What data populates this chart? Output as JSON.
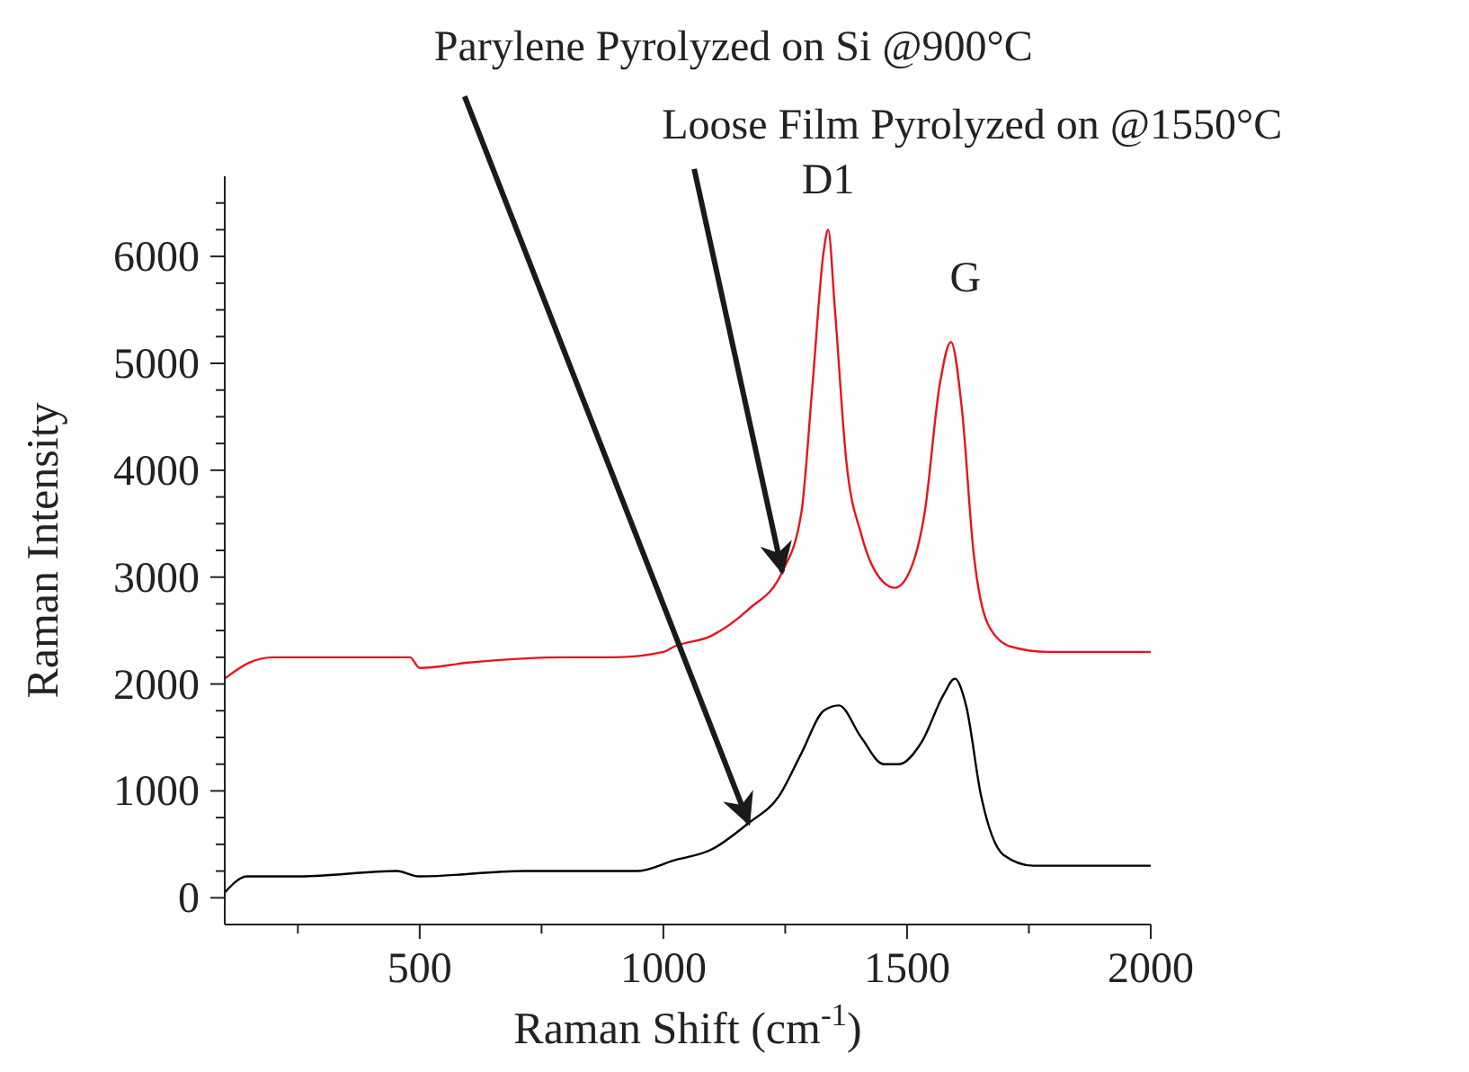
{
  "chart_data": {
    "type": "line",
    "xlabel": "Raman Shift (cm$^{-1}$)",
    "ylabel": "Raman Intensity",
    "xlim": [
      100,
      2000
    ],
    "ylim": [
      -250,
      6750
    ],
    "xticks": [
      {
        "value": 250,
        "label": null
      },
      500,
      {
        "value": 750,
        "label": null
      },
      1000,
      {
        "value": 1250,
        "label": null
      },
      1500,
      {
        "value": 1750,
        "label": null
      },
      2000
    ],
    "yticks": [
      0,
      {
        "value": 250,
        "label": null
      },
      {
        "value": 500,
        "label": null
      },
      {
        "value": 750,
        "label": null
      },
      1000,
      {
        "value": 1250,
        "label": null
      },
      {
        "value": 1500,
        "label": null
      },
      {
        "value": 1750,
        "label": null
      },
      2000,
      {
        "value": 2250,
        "label": null
      },
      {
        "value": 2500,
        "label": null
      },
      {
        "value": 2750,
        "label": null
      },
      3000,
      {
        "value": 3250,
        "label": null
      },
      {
        "value": 3500,
        "label": null
      },
      {
        "value": 3750,
        "label": null
      },
      4000,
      {
        "value": 4250,
        "label": null
      },
      {
        "value": 4500,
        "label": null
      },
      {
        "value": 4750,
        "label": null
      },
      5000,
      {
        "value": 5250,
        "label": null
      },
      {
        "value": 5500,
        "label": null
      },
      {
        "value": 5750,
        "label": null
      },
      6000,
      {
        "value": 6250,
        "label": null
      },
      {
        "value": 6500,
        "label": null
      }
    ],
    "marker": "none",
    "line_style": "solid",
    "series": [
      {
        "color": "#e8141c",
        "x": [
          100,
          150,
          200,
          300,
          450,
          480,
          500,
          600,
          800,
          870,
          900,
          1000,
          1022,
          1098,
          1175,
          1244,
          1283,
          1306,
          1329,
          1338,
          1352,
          1375,
          1406,
          1452,
          1475,
          1505,
          1536,
          1567,
          1590,
          1613,
          1636,
          1667,
          1713,
          1790,
          2000
        ],
        "values": [
          2050,
          2200,
          2250,
          2250,
          2250,
          2250,
          2150,
          2200,
          2250,
          2250,
          2250,
          2300,
          2350,
          2450,
          2700,
          3050,
          3600,
          4800,
          6050,
          6250,
          5500,
          4100,
          3400,
          2950,
          2900,
          3050,
          3600,
          4800,
          5200,
          4550,
          3250,
          2550,
          2350,
          2300,
          2300
        ]
      },
      {
        "color": "#000000",
        "x": [
          100,
          146,
          254,
          453,
          499,
          714,
          945,
          1022,
          1098,
          1175,
          1237,
          1283,
          1329,
          1360,
          1406,
          1452,
          1483,
          1529,
          1575,
          1598,
          1621,
          1652,
          1698,
          1759,
          2000
        ],
        "values": [
          50,
          200,
          200,
          250,
          200,
          250,
          250,
          350,
          450,
          700,
          950,
          1350,
          1750,
          1800,
          1500,
          1250,
          1250,
          1450,
          1900,
          2050,
          1800,
          950,
          400,
          300,
          300
        ]
      }
    ],
    "annotations": [
      {
        "text": "Parylene Pyrolyzed on Si @900°C",
        "x": 1175,
        "y": 700
      },
      {
        "text": "Loose Film Pyrolyzed on @1550°C",
        "x": 1244,
        "y": 3050
      },
      {
        "text": "D1",
        "x": 1338,
        "y": 6250
      },
      {
        "text": "G",
        "x": 1590,
        "y": 5200
      }
    ]
  }
}
